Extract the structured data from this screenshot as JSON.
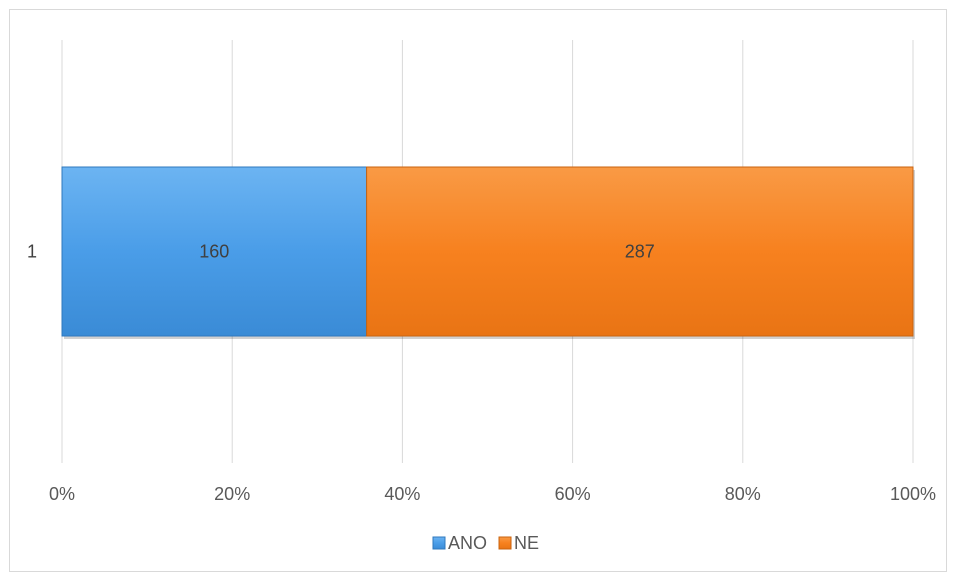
{
  "chart_data": {
    "type": "bar",
    "orientation": "horizontal",
    "stacking": "percent",
    "categories": [
      "1"
    ],
    "series": [
      {
        "name": "ANO",
        "values": [
          160
        ],
        "color": "#4a9de8"
      },
      {
        "name": "NE",
        "values": [
          287
        ],
        "color": "#f7811f"
      }
    ],
    "xlim": [
      0,
      100
    ],
    "x_ticks": [
      "0%",
      "20%",
      "40%",
      "60%",
      "80%",
      "100%"
    ],
    "grid": "vertical",
    "legend_position": "bottom"
  }
}
